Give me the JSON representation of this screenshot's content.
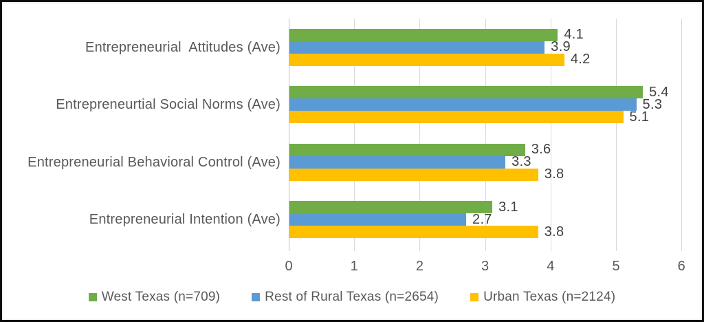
{
  "chart_data": {
    "type": "bar",
    "orientation": "horizontal",
    "title": "",
    "categories": [
      "Entrepreneurial  Attitudes (Ave)",
      "Entrepreneurtial Social Norms (Ave)",
      "Entrepreneurial Behavioral Control (Ave)",
      "Entrepreneurial Intention (Ave)"
    ],
    "series": [
      {
        "name": "West Texas (n=709)",
        "color": "#70AD47",
        "values": [
          4.1,
          5.4,
          3.6,
          3.1
        ]
      },
      {
        "name": "Rest of Rural Texas (n=2654)",
        "color": "#5B9BD5",
        "values": [
          3.9,
          5.3,
          3.3,
          2.7
        ]
      },
      {
        "name": "Urban Texas (n=2124)",
        "color": "#FFC000",
        "values": [
          4.2,
          5.1,
          3.8,
          3.8
        ]
      }
    ],
    "x_axis": {
      "min": 0,
      "max": 6,
      "ticks": [
        0,
        1,
        2,
        3,
        4,
        5,
        6
      ]
    },
    "data_labels": true,
    "data_label_format": "0.0",
    "grid": true,
    "legend_position": "bottom",
    "colors": {
      "gridline": "#d9d9d9",
      "axis_line": "#bfbfbf",
      "category_text": "#595959",
      "tick_text": "#595959",
      "data_label_text": "#404040",
      "legend_text": "#595959",
      "frame_border": "#0a0a0a",
      "background": "#ffffff"
    }
  }
}
